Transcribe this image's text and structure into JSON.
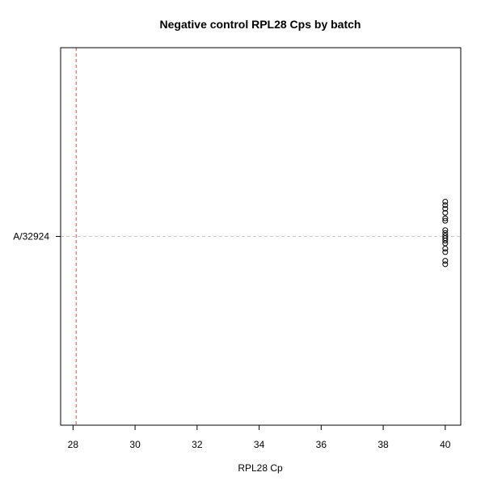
{
  "chart_data": {
    "type": "scatter",
    "title": "Negative control RPL28 Cps by batch",
    "xlabel": "RPL28 Cp",
    "ylabel": "",
    "xlim": [
      27.6,
      40.5
    ],
    "x_ticks": [
      28,
      30,
      32,
      34,
      36,
      38,
      40
    ],
    "categories": [
      "A/32924"
    ],
    "reference_line": {
      "x": 28.1,
      "style": "dashed",
      "color": "#dd4b4b"
    },
    "grid": "horizontal dashed line at each category",
    "series": [
      {
        "category": "A/32924",
        "points": [
          {
            "x": 40,
            "offset": -1.0
          },
          {
            "x": 40,
            "offset": -0.9
          },
          {
            "x": 40,
            "offset": -0.8
          },
          {
            "x": 40,
            "offset": -0.68
          },
          {
            "x": 40,
            "offset": -0.52
          },
          {
            "x": 40,
            "offset": -0.45
          },
          {
            "x": 40,
            "offset": -0.18
          },
          {
            "x": 40,
            "offset": -0.1
          },
          {
            "x": 40,
            "offset": -0.02
          },
          {
            "x": 40,
            "offset": 0.05
          },
          {
            "x": 40,
            "offset": 0.12
          },
          {
            "x": 40,
            "offset": 0.2
          },
          {
            "x": 40,
            "offset": 0.35
          },
          {
            "x": 40,
            "offset": 0.45
          },
          {
            "x": 40,
            "offset": 0.7
          },
          {
            "x": 40,
            "offset": 0.8
          }
        ]
      }
    ],
    "colors": {
      "points": "#000000",
      "reference_line": "#dd4b4b",
      "grid": "#c8c8c8"
    }
  }
}
